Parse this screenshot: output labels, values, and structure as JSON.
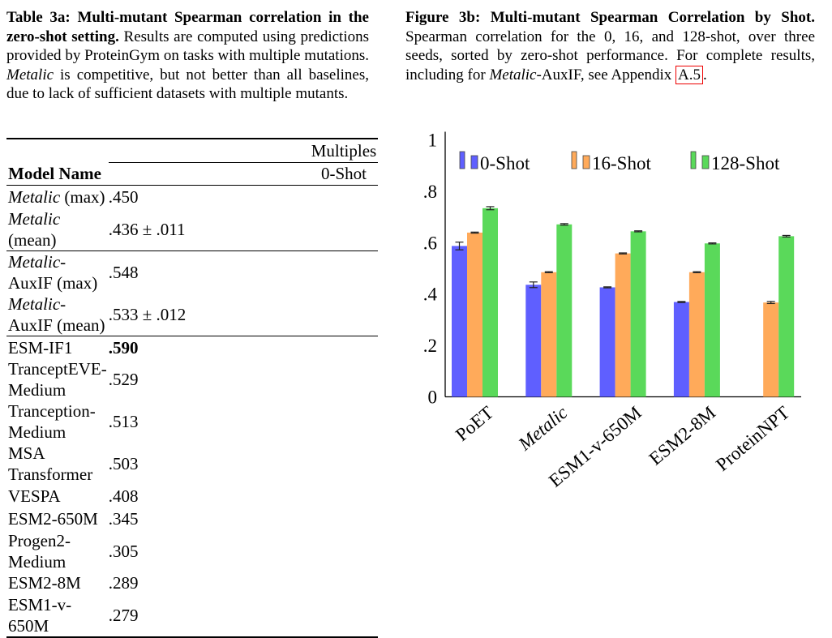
{
  "table": {
    "caption_bold": "Table 3a: Multi-mutant Spearman correlation in the zero-shot setting.",
    "caption_parts": [
      " Results are computed using predictions provided by ProteinGym on tasks with multiple mutations. ",
      "Metalic",
      " is competitive, but not better than all baselines, due to lack of sufficient datasets with multiple mutants."
    ],
    "group_header": "Multiples",
    "col_model": "Model Name",
    "col_value": "0-Shot",
    "rows": [
      {
        "model_it": "Metalic",
        "model": " (max)",
        "value": ".450"
      },
      {
        "model_it": "Metalic",
        "model": " (mean)",
        "value": ".436 ± .011"
      },
      {
        "model_it": "Metalic",
        "model": "-AuxIF (max)",
        "value": ".548"
      },
      {
        "model_it": "Metalic",
        "model": "-AuxIF (mean)",
        "value": ".533 ± .012"
      },
      {
        "model_it": "",
        "model": "ESM-IF1",
        "value": ".590",
        "bold": true
      },
      {
        "model_it": "",
        "model": "TranceptEVE-Medium",
        "value": ".529"
      },
      {
        "model_it": "",
        "model": "Tranception-Medium",
        "value": ".513"
      },
      {
        "model_it": "",
        "model": "MSA Transformer",
        "value": ".503"
      },
      {
        "model_it": "",
        "model": "VESPA",
        "value": ".408"
      },
      {
        "model_it": "",
        "model": "ESM2-650M",
        "value": ".345"
      },
      {
        "model_it": "",
        "model": "Progen2-Medium",
        "value": ".305"
      },
      {
        "model_it": "",
        "model": "ESM2-8M",
        "value": ".289"
      },
      {
        "model_it": "",
        "model": "ESM1-v-650M",
        "value": ".279"
      }
    ]
  },
  "figure": {
    "caption_bold": "Figure 3b: Multi-mutant Spearman Correlation by Shot.",
    "caption_parts": [
      " Spearman correlation for the 0, 16, and 128-shot, over three seeds, sorted by zero-shot performance. For complete results, including for ",
      "Metalic",
      "-AuxIF, see Appendix ",
      "A.5",
      "."
    ]
  },
  "chart_data": {
    "type": "bar",
    "grid": false,
    "legend": "top",
    "categories": [
      "PoET",
      "Metalic",
      "ESM1-v-650M",
      "ESM2-8M",
      "ProteinNPT"
    ],
    "ylim": [
      0,
      1
    ],
    "yticks": [
      "0",
      ".2",
      ".4",
      ".6",
      ".8",
      "1"
    ],
    "ytick_values": [
      0,
      0.2,
      0.4,
      0.6,
      0.8,
      1
    ],
    "series": [
      {
        "name": "0-Shot",
        "color": "#5f5fff",
        "values": [
          0.587,
          0.436,
          0.426,
          0.369,
          null
        ],
        "errors": [
          0.015,
          0.011,
          0.002,
          0.002,
          null
        ]
      },
      {
        "name": "16-Shot",
        "color": "#ffaa5a",
        "values": [
          0.639,
          0.485,
          0.558,
          0.485,
          0.367
        ],
        "errors": [
          0.002,
          0.002,
          0.002,
          0.002,
          0.004
        ]
      },
      {
        "name": "128-Shot",
        "color": "#5ad95a",
        "values": [
          0.734,
          0.671,
          0.644,
          0.597,
          0.625
        ],
        "errors": [
          0.006,
          0.003,
          0.002,
          0.002,
          0.003
        ]
      }
    ]
  }
}
